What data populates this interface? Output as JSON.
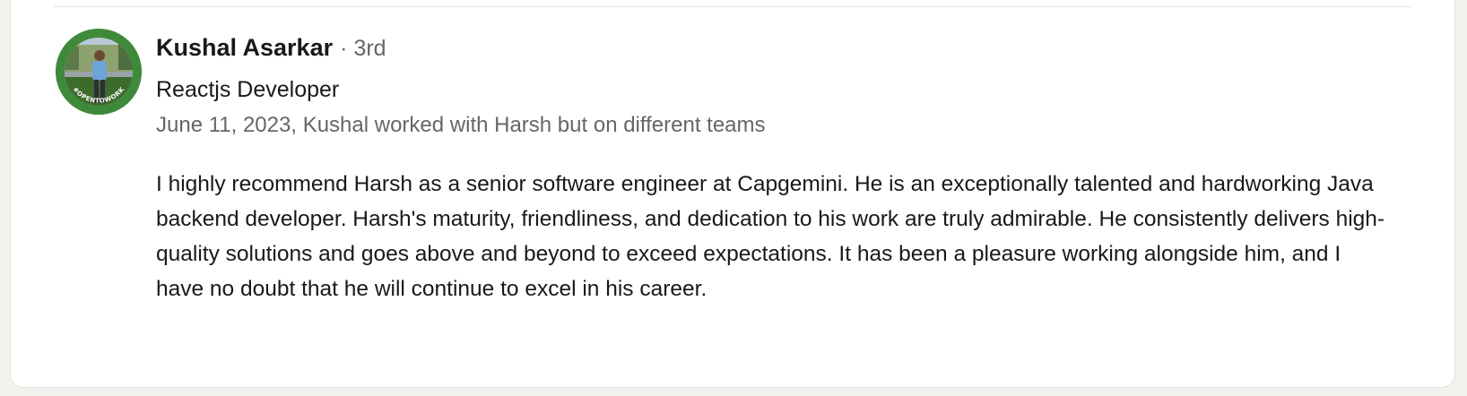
{
  "recommendation": {
    "name": "Kushal Asarkar",
    "separator": "·",
    "degree": "3rd",
    "headline": "Reactjs Developer",
    "meta": "June 11, 2023, Kushal worked with Harsh but on different teams",
    "text": "I highly recommend Harsh as a senior software engineer at Capgemini. He is an exceptionally talented and hardworking Java backend developer. Harsh's maturity, friendliness, and dedication to his work are truly admirable. He consistently delivers high-quality solutions and goes above and beyond to exceed expectations. It has been a pleasure working alongside him, and I have no doubt that he will continue to excel in his career.",
    "avatar_frame_text": "#OPENTOWORK",
    "avatar_frame_color": "#3f8a3a"
  }
}
